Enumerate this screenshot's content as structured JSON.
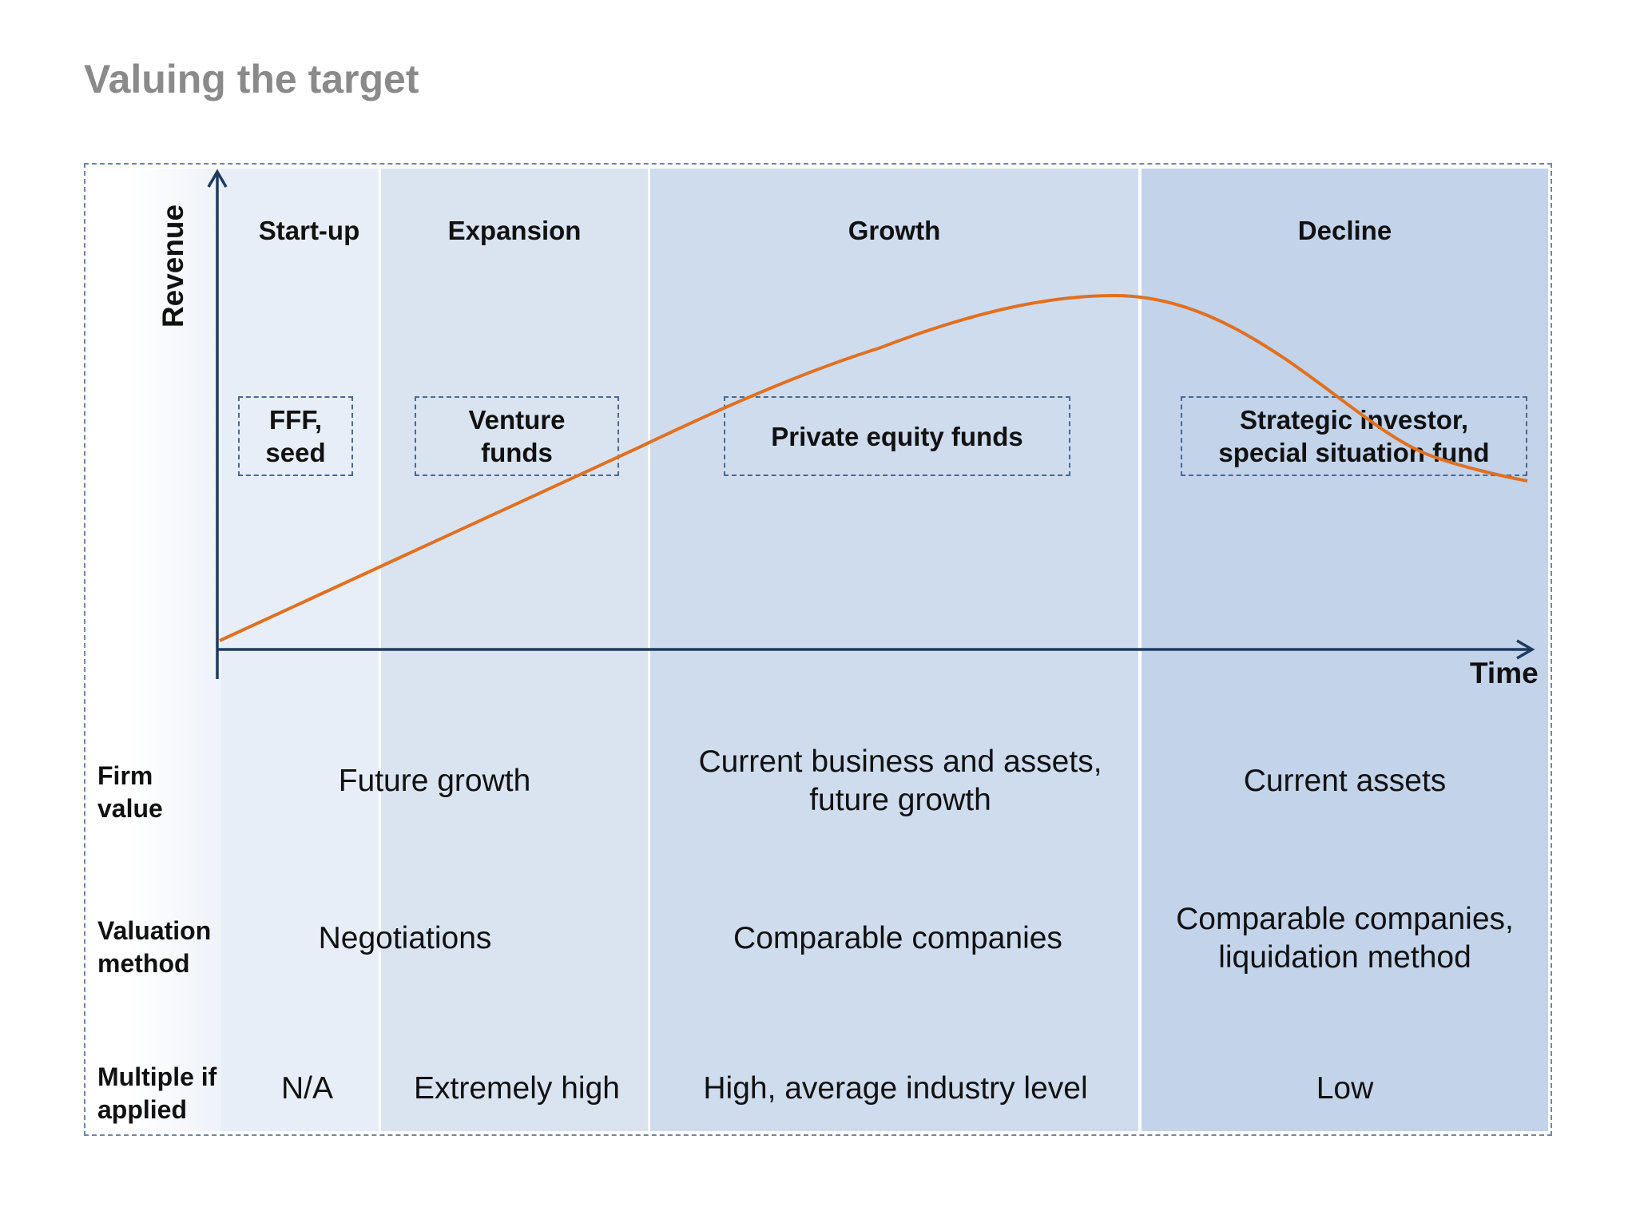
{
  "title": "Valuing the target",
  "axes": {
    "y_label": "Revenue",
    "x_label": "Time"
  },
  "stages": [
    {
      "name": "Start-up"
    },
    {
      "name": "Expansion"
    },
    {
      "name": "Growth"
    },
    {
      "name": "Decline"
    }
  ],
  "investors": [
    {
      "label": "FFF,\nseed"
    },
    {
      "label": "Venture\nfunds"
    },
    {
      "label": "Private equity funds"
    },
    {
      "label": "Strategic investor,\nspecial situation fund"
    }
  ],
  "rows": {
    "firm_value": {
      "label": "Firm\nvalue",
      "startup_expansion": "Future growth",
      "growth": "Current business and assets,\nfuture growth",
      "decline": "Current assets"
    },
    "valuation_method": {
      "label": "Valuation\nmethod",
      "startup_expansion": "Negotiations",
      "growth": "Comparable companies",
      "decline": "Comparable companies,\nliquidation method"
    },
    "multiple": {
      "label": "Multiple if\napplied",
      "startup": "N/A",
      "expansion": "Extremely high",
      "growth": "High, average industry level",
      "decline": "Low"
    }
  },
  "colors": {
    "revenue_curve": "#e07020",
    "axis": "#1f3a5f",
    "startup_bg": "#e8eef7",
    "expansion_bg": "#dae4f1",
    "growth_bg": "#cfdcee",
    "decline_bg": "#c2d3ea"
  }
}
